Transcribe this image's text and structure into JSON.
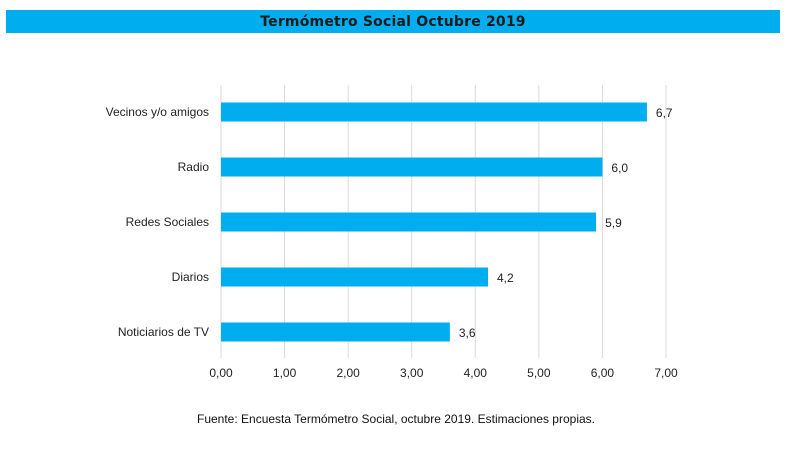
{
  "header": {
    "title": "Termómetro Social Octubre 2019"
  },
  "footer": {
    "source": "Fuente: Encuesta Termómetro Social, octubre 2019. Estimaciones propias."
  },
  "colors": {
    "bar": "#00aeef",
    "banner": "#00aeef",
    "grid": "#d9d9d9",
    "text": "#222222"
  },
  "chart_data": {
    "type": "bar",
    "orientation": "horizontal",
    "title": "Termómetro Social Octubre 2019",
    "xlabel": "",
    "ylabel": "",
    "categories": [
      "Vecinos y/o amigos",
      "Radio",
      "Redes Sociales",
      "Diarios",
      "Noticiarios de TV"
    ],
    "values": [
      6.7,
      6.0,
      5.9,
      4.2,
      3.6
    ],
    "value_labels": [
      "6,7",
      "6,0",
      "5,9",
      "4,2",
      "3,6"
    ],
    "xlim": [
      0,
      7
    ],
    "xticks": [
      0,
      1,
      2,
      3,
      4,
      5,
      6,
      7
    ],
    "xtick_labels": [
      "0,00",
      "1,00",
      "2,00",
      "3,00",
      "4,00",
      "5,00",
      "6,00",
      "7,00"
    ],
    "grid": true,
    "legend": "none"
  }
}
